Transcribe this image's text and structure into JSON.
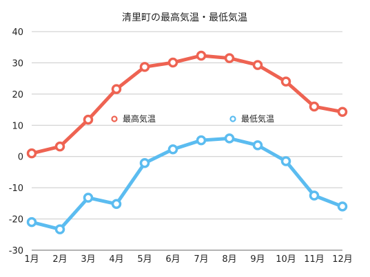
{
  "chart_data": {
    "type": "line",
    "title": "清里町の最高気温・最低気温",
    "xlabel": "",
    "ylabel": "",
    "categories": [
      "1月",
      "2月",
      "3月",
      "4月",
      "5月",
      "6月",
      "7月",
      "8月",
      "9月",
      "10月",
      "11月",
      "12月"
    ],
    "ylim": [
      -30,
      40
    ],
    "yticks": [
      -30,
      -20,
      -10,
      0,
      10,
      20,
      30,
      40
    ],
    "grid": true,
    "legend": "inside-middle",
    "series": [
      {
        "name": "最高気温",
        "color": "#ee6352",
        "values": [
          1.0,
          3.2,
          11.8,
          21.6,
          28.7,
          30.1,
          32.3,
          31.5,
          29.3,
          24.0,
          16.0,
          14.3
        ]
      },
      {
        "name": "最低気温",
        "color": "#5bbcf0",
        "values": [
          -21.0,
          -23.3,
          -13.2,
          -15.2,
          -2.1,
          2.3,
          5.2,
          5.8,
          3.6,
          -1.5,
          -12.5,
          -16.0
        ]
      }
    ]
  }
}
